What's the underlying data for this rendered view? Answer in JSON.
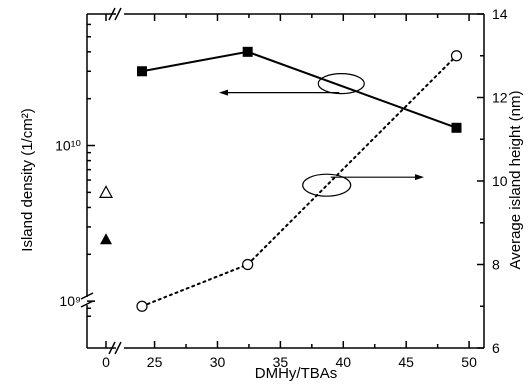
{
  "chart_data": {
    "type": "scatter",
    "x_axis": {
      "label": "DMHy/TBAs",
      "range": [
        0,
        50
      ],
      "broken_between": [
        0,
        20
      ],
      "ticks": [
        0,
        25,
        30,
        35,
        40,
        45,
        50
      ],
      "tick_labels": [
        "0",
        "25",
        "30",
        "35",
        "40",
        "45",
        "50"
      ]
    },
    "y_left": {
      "label": "Island density (1/cm²)",
      "scale": "log",
      "range": [
        500000000.0,
        70000000000.0
      ],
      "major_ticks": [
        1000000000.0,
        10000000000.0
      ],
      "tick_labels": [
        "10⁹",
        "10¹⁰"
      ],
      "broken": true
    },
    "y_right": {
      "label": "Average island height (nm)",
      "scale": "linear",
      "range": [
        6,
        14
      ],
      "ticks": [
        6,
        8,
        10,
        12,
        14
      ],
      "tick_labels": [
        "6",
        "8",
        "10",
        "12",
        "14"
      ]
    },
    "series": [
      {
        "axis": "left",
        "marker": "filled-square",
        "line": "solid",
        "x": [
          24,
          32.4,
          49
        ],
        "y": [
          30000000000.0,
          40000000000.0,
          13000000000.0
        ]
      },
      {
        "axis": "right",
        "marker": "open-circle",
        "line": "dotted",
        "x": [
          24,
          32.4,
          49
        ],
        "y": [
          7.0,
          8.0,
          13.0
        ]
      },
      {
        "axis": "left",
        "marker": "open-triangle",
        "line": "none",
        "x": [
          0
        ],
        "y": [
          5000000000.0
        ]
      },
      {
        "axis": "left",
        "marker": "filled-triangle",
        "line": "none",
        "x": [
          0
        ],
        "y": [
          2500000000.0
        ]
      }
    ],
    "annotations": [
      {
        "shape": "ellipse",
        "points_to": "left axis",
        "near_x": 40,
        "near_y_left": 25000000000.0
      },
      {
        "shape": "ellipse",
        "points_to": "right axis",
        "near_x": 39,
        "near_y_right": 9.9
      }
    ]
  }
}
